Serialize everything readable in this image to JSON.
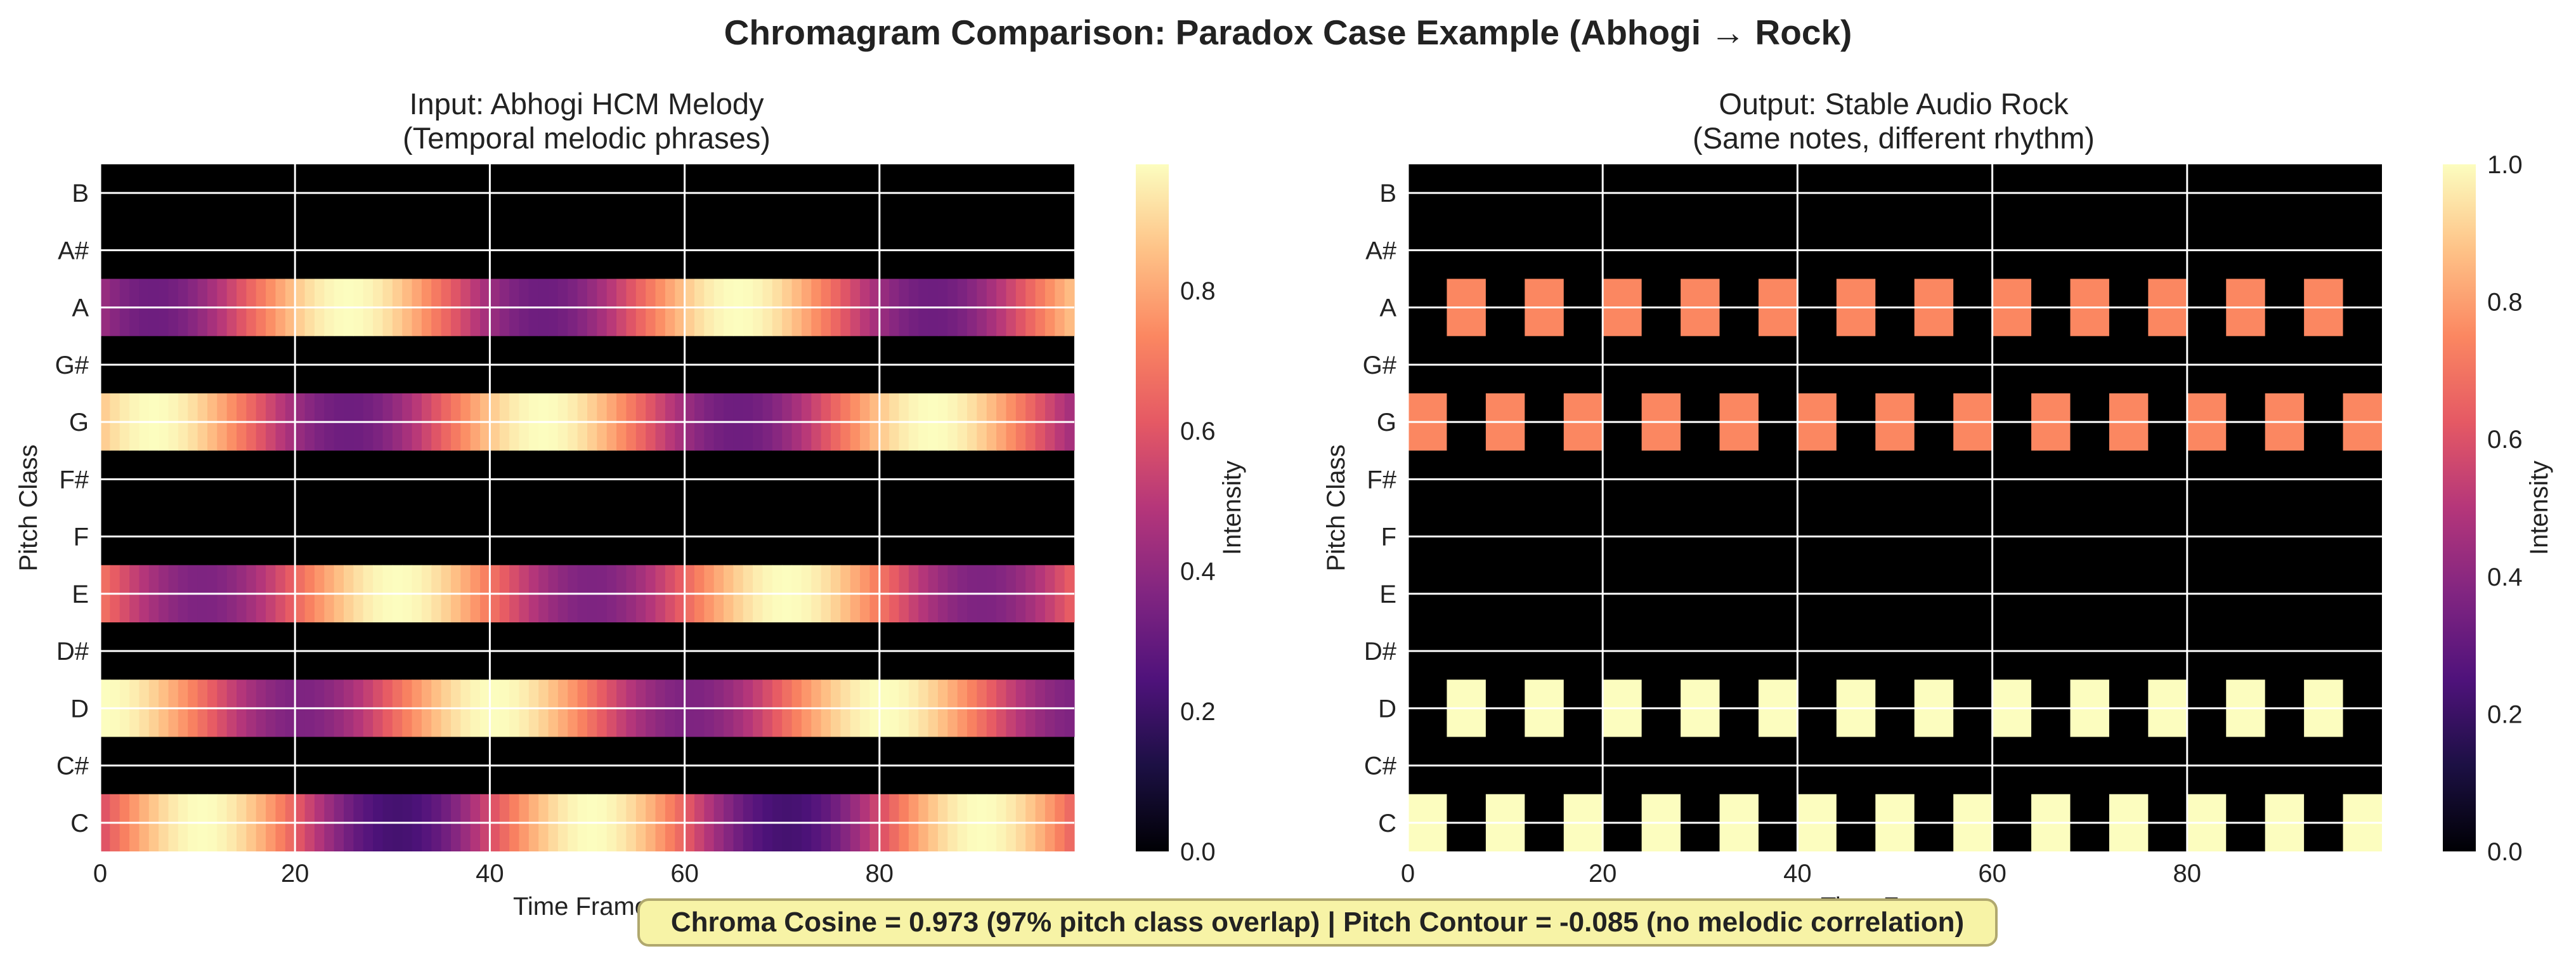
{
  "figure": {
    "title": "Chromagram Comparison: Paradox Case Example (Abhogi → Rock)",
    "summary": "Chroma Cosine = 0.973 (97% pitch class overlap) | Pitch Contour = -0.085 (no melodic correlation)"
  },
  "chart_data": [
    {
      "type": "heatmap",
      "title": "Input: Abhogi HCM Melody",
      "subtitle": "(Temporal melodic phrases)",
      "xlabel": "Time Frames",
      "ylabel": "Pitch Class",
      "xticks": [
        0,
        20,
        40,
        60,
        80
      ],
      "xlim": [
        0,
        100
      ],
      "pitch_classes": [
        "C",
        "C#",
        "D",
        "D#",
        "E",
        "F",
        "F#",
        "G",
        "G#",
        "A",
        "A#",
        "B"
      ],
      "colormap": "magma",
      "grid": true,
      "rows": [
        {
          "pitch": "C",
          "pattern": "sine",
          "mean": 0.6,
          "amplitude": 0.38,
          "period": 40,
          "peak_frame": 10
        },
        {
          "pitch": "D",
          "pattern": "sine",
          "mean": 0.67,
          "amplitude": 0.31,
          "period": 40,
          "peak_frame": 0
        },
        {
          "pitch": "E",
          "pattern": "sine",
          "mean": 0.67,
          "amplitude": 0.31,
          "period": 40,
          "peak_frame": 30
        },
        {
          "pitch": "G",
          "pattern": "sine",
          "mean": 0.65,
          "amplitude": 0.33,
          "period": 40,
          "peak_frame": 5
        },
        {
          "pitch": "A",
          "pattern": "sine",
          "mean": 0.65,
          "amplitude": 0.33,
          "period": 40,
          "peak_frame": 25
        }
      ],
      "colorbar": {
        "label": "Intensity",
        "ticks": [
          0.0,
          0.2,
          0.4,
          0.6,
          0.8
        ],
        "range": [
          0,
          0.98
        ]
      }
    },
    {
      "type": "heatmap",
      "title": "Output: Stable Audio Rock",
      "subtitle": "(Same notes, different rhythm)",
      "xlabel": "Time Frames",
      "ylabel": "Pitch Class",
      "xticks": [
        0,
        20,
        40,
        60,
        80
      ],
      "xlim": [
        0,
        100
      ],
      "pitch_classes": [
        "C",
        "C#",
        "D",
        "D#",
        "E",
        "F",
        "F#",
        "G",
        "G#",
        "A",
        "A#",
        "B"
      ],
      "colormap": "magma",
      "grid": true,
      "rows": [
        {
          "pitch": "C",
          "pattern": "pulses",
          "value": 1.0,
          "start": 0,
          "period": 8,
          "width": 4
        },
        {
          "pitch": "D",
          "pattern": "pulses",
          "value": 1.0,
          "start": 4,
          "period": 8,
          "width": 4
        },
        {
          "pitch": "G",
          "pattern": "pulses",
          "value": 0.75,
          "start": 0,
          "period": 8,
          "width": 4
        },
        {
          "pitch": "A",
          "pattern": "pulses",
          "value": 0.75,
          "start": 4,
          "period": 8,
          "width": 4
        }
      ],
      "colorbar": {
        "label": "Intensity",
        "ticks": [
          0.0,
          0.2,
          0.4,
          0.6,
          0.8,
          1.0
        ],
        "range": [
          0,
          1.0
        ]
      }
    }
  ]
}
